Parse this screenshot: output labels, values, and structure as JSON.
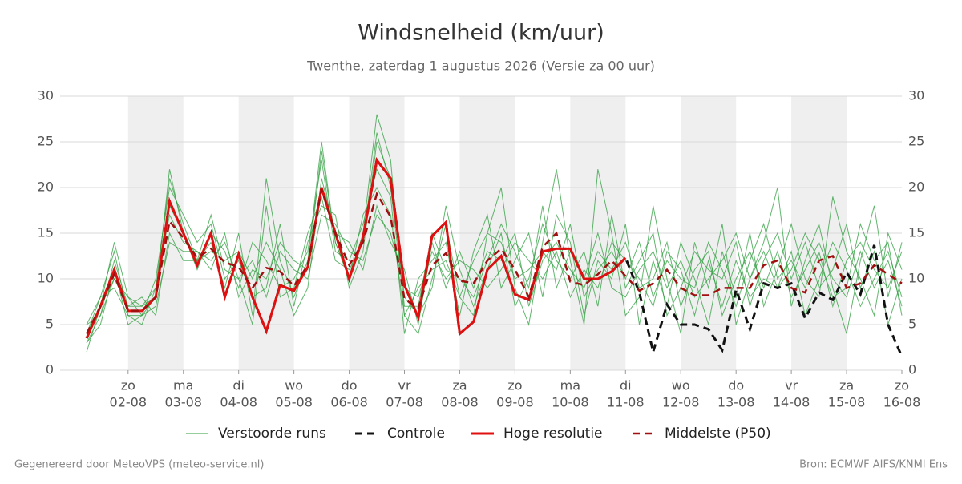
{
  "chart_data": {
    "type": "line",
    "title": "Windsnelheid (km/uur)",
    "subtitle": "Twenthe, zaterdag  1 augustus 2026 (Versie za 00 uur)",
    "footer_left": "Gegenereerd door MeteoVPS (meteo-service.nl)",
    "footer_right": "Bron: ECMWF AIFS/KNMI Ens",
    "x": [
      1.25,
      1.5,
      1.75,
      2,
      2.25,
      2.5,
      2.75,
      3,
      3.25,
      3.5,
      3.75,
      4,
      4.25,
      4.5,
      4.75,
      5,
      5.25,
      5.5,
      5.75,
      6,
      6.25,
      6.5,
      6.75,
      7,
      7.25,
      7.5,
      7.75,
      8,
      8.25,
      8.5,
      8.75,
      9,
      9.25,
      9.5,
      9.75,
      10,
      10.25,
      10.5,
      10.75,
      11,
      11.25,
      11.5,
      11.75,
      12,
      12.25,
      12.5,
      12.75,
      13,
      13.25,
      13.5,
      13.75,
      14,
      14.25,
      14.5,
      14.75,
      15,
      15.25,
      15.5,
      15.75,
      16
    ],
    "xlim": [
      0.77,
      16
    ],
    "xticks": [
      {
        "value": 2,
        "label": "02-08"
      },
      {
        "value": 3,
        "label": "03-08"
      },
      {
        "value": 4,
        "label": "04-08"
      },
      {
        "value": 5,
        "label": "05-08"
      },
      {
        "value": 6,
        "label": "06-08"
      },
      {
        "value": 7,
        "label": "07-08"
      },
      {
        "value": 8,
        "label": "08-08"
      },
      {
        "value": 9,
        "label": "09-08"
      },
      {
        "value": 10,
        "label": "10-08"
      },
      {
        "value": 11,
        "label": "11-08"
      },
      {
        "value": 12,
        "label": "12-08"
      },
      {
        "value": 13,
        "label": "13-08"
      },
      {
        "value": 14,
        "label": "14-08"
      },
      {
        "value": 15,
        "label": "15-08"
      },
      {
        "value": 16,
        "label": "16-08"
      }
    ],
    "xtick_weekdays": [
      "zo",
      "ma",
      "di",
      "wo",
      "do",
      "vr",
      "za",
      "zo",
      "ma",
      "di",
      "wo",
      "do",
      "vr",
      "za",
      "zo"
    ],
    "ylim": [
      0,
      30
    ],
    "yticks": [
      0,
      5,
      10,
      15,
      20,
      25,
      30
    ],
    "grid": true,
    "legend": "bottom",
    "ensemble": {
      "name": "Verstoorde runs",
      "color": "#2e9e3e",
      "members": [
        [
          3,
          6,
          12,
          7,
          7,
          9,
          21,
          16,
          12,
          14,
          9,
          15,
          6,
          21,
          12,
          8,
          12,
          25,
          14,
          10,
          15,
          28,
          23,
          6,
          4,
          10,
          16,
          8,
          6,
          15,
          20,
          9,
          5,
          14,
          22,
          12,
          5,
          22,
          15,
          6,
          8,
          18,
          10,
          4,
          14,
          9,
          16,
          5,
          10,
          14,
          20,
          7,
          12,
          16,
          9,
          4,
          12,
          18,
          8,
          14
        ],
        [
          5,
          8,
          9,
          6,
          6,
          7,
          14,
          13,
          13,
          12,
          14,
          10,
          12,
          8,
          13,
          11,
          10,
          17,
          16,
          13,
          12,
          17,
          15,
          9,
          8,
          13,
          10,
          12,
          11,
          9,
          11,
          14,
          12,
          10,
          13,
          8,
          11,
          9,
          14,
          12,
          10,
          7,
          13,
          11,
          6,
          12,
          7,
          12,
          8,
          10,
          9,
          13,
          6,
          10,
          14,
          11,
          7,
          10,
          13,
          8
        ],
        [
          4,
          7,
          14,
          8,
          7,
          8,
          18,
          15,
          11,
          15,
          13,
          9,
          14,
          12,
          9,
          10,
          13,
          23,
          13,
          12,
          16,
          22,
          19,
          4,
          10,
          12,
          14,
          6,
          13,
          17,
          9,
          12,
          15,
          8,
          17,
          14,
          6,
          12,
          10,
          16,
          5,
          12,
          7,
          14,
          10,
          5,
          13,
          8,
          15,
          7,
          11,
          16,
          10,
          8,
          19,
          13,
          10,
          6,
          15,
          11
        ],
        [
          3,
          5,
          11,
          5,
          6,
          10,
          20,
          17,
          14,
          16,
          10,
          12,
          8,
          9,
          16,
          7,
          14,
          18,
          17,
          9,
          13,
          25,
          21,
          8,
          6,
          9,
          18,
          11,
          7,
          11,
          15,
          7,
          10,
          16,
          12,
          10,
          13,
          7,
          17,
          9,
          12,
          15,
          6,
          9,
          13,
          11,
          10,
          14,
          7,
          12,
          15,
          10,
          14,
          9,
          11,
          16,
          9,
          13,
          5,
          10
        ],
        [
          5,
          6,
          10,
          7,
          8,
          6,
          15,
          12,
          12,
          13,
          12,
          13,
          10,
          14,
          11,
          6,
          9,
          21,
          15,
          14,
          11,
          18,
          14,
          11,
          5,
          14,
          9,
          13,
          9,
          13,
          12,
          15,
          7,
          12,
          14,
          11,
          9,
          13,
          11,
          14,
          9,
          10,
          14,
          7,
          11,
          13,
          6,
          10,
          13,
          9,
          13,
          8,
          11,
          14,
          10,
          8,
          13,
          9,
          12,
          7
        ],
        [
          4,
          8,
          13,
          6,
          5,
          9,
          17,
          14,
          13,
          11,
          15,
          8,
          11,
          10,
          14,
          12,
          11,
          24,
          14,
          10,
          17,
          20,
          17,
          6,
          9,
          11,
          12,
          8,
          12,
          15,
          14,
          10,
          11,
          13,
          11,
          16,
          8,
          11,
          13,
          10,
          14,
          8,
          12,
          10,
          9,
          14,
          11,
          7,
          12,
          16,
          10,
          12,
          9,
          13,
          7,
          12,
          14,
          11,
          9,
          13
        ],
        [
          2,
          7,
          10,
          8,
          6,
          8,
          22,
          15,
          12,
          17,
          11,
          10,
          5,
          18,
          8,
          9,
          15,
          19,
          12,
          11,
          14,
          26,
          20,
          7,
          7,
          15,
          11,
          10,
          8,
          12,
          16,
          13,
          9,
          18,
          9,
          13,
          10,
          15,
          9,
          8,
          11,
          13,
          9,
          12,
          8,
          10,
          12,
          15,
          10,
          13,
          9,
          11,
          15,
          12,
          8,
          9,
          16,
          12,
          14,
          6
        ]
      ]
    },
    "series": [
      {
        "name": "Controle",
        "color": "#111111",
        "dashed": true,
        "width": 3,
        "values": [
          3.5,
          7,
          11,
          6.5,
          6.5,
          8,
          18.5,
          15,
          11.5,
          15,
          8,
          12.7,
          8,
          4.3,
          9.3,
          8.7,
          11.3,
          20,
          15,
          10,
          14.5,
          23,
          21,
          9.3,
          5.8,
          14.7,
          16.2,
          4,
          5.3,
          11,
          12.5,
          8.3,
          7.7,
          13,
          13.3,
          13.3,
          10,
          10,
          10.8,
          12.3,
          8.5,
          2,
          7.2,
          5,
          5,
          4.5,
          2.2,
          8.8,
          4.5,
          9.5,
          9,
          9.5,
          5.7,
          8.5,
          7.7,
          10.7,
          8.3,
          13.7,
          5,
          1.5
        ]
      },
      {
        "name": "Hoge resolutie",
        "color": "#e01010",
        "dashed": false,
        "width": 3,
        "values": [
          3.5,
          7,
          11,
          6.5,
          6.5,
          8,
          18.5,
          15,
          11.5,
          15,
          8,
          12.7,
          8,
          4.3,
          9.3,
          8.7,
          11.3,
          20,
          15,
          10,
          14.5,
          23,
          21,
          9.3,
          5.8,
          14.7,
          16.2,
          4,
          5.3,
          11,
          12.5,
          8.3,
          7.7,
          13,
          13.3,
          13.3,
          10,
          10,
          10.8,
          12.3,
          null,
          null,
          null,
          null,
          null,
          null,
          null,
          null,
          null,
          null,
          null,
          null,
          null,
          null,
          null,
          null,
          null,
          null,
          null,
          null
        ]
      },
      {
        "name": "Middelste (P50)",
        "color": "#a01010",
        "dashed": true,
        "width": 2.5,
        "values": [
          4,
          7,
          10.5,
          6.5,
          6.5,
          8,
          16.3,
          14.5,
          12.3,
          13.3,
          11.8,
          11.3,
          9,
          11.2,
          10.8,
          9.2,
          11.5,
          19.8,
          15,
          11.5,
          14,
          19.3,
          16.8,
          7.8,
          6.8,
          11.5,
          12.8,
          9.8,
          9.5,
          12,
          13.3,
          11,
          8,
          13.5,
          15,
          9.7,
          9.3,
          10.5,
          12,
          10.3,
          8.7,
          9.5,
          11,
          9,
          8.2,
          8.2,
          9,
          9,
          9,
          11.5,
          12,
          9,
          8.5,
          12,
          12.5,
          9,
          9.5,
          11.5,
          10.5,
          9.5
        ]
      }
    ]
  }
}
